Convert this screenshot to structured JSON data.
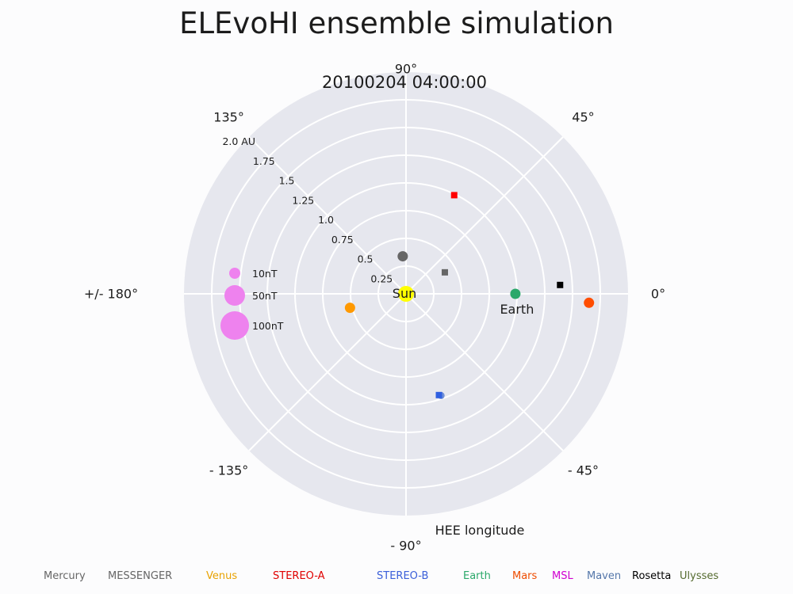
{
  "title": "ELEvoHI ensemble simulation",
  "timestamp": "20100204   04:00:00",
  "chart_data": {
    "type": "scatter",
    "projection": "polar",
    "theta_zero_direction": "right",
    "r_max_au": 2.0,
    "grid": true,
    "background_color": "#e6e7ee",
    "radial_ticks": [
      0.25,
      0.5,
      0.75,
      1.0,
      1.25,
      1.5,
      1.75,
      2.0
    ],
    "radial_tick_labels": [
      "0.25",
      "0.5",
      "0.75",
      "1.0",
      "1.25",
      "1.5",
      "1.75",
      "2.0 AU"
    ],
    "angle_labels": [
      {
        "angle": 0,
        "text": "0°"
      },
      {
        "angle": 45,
        "text": "45°"
      },
      {
        "angle": 90,
        "text": "90°"
      },
      {
        "angle": 135,
        "text": "135°"
      },
      {
        "angle": 180,
        "text": "+/- 180°"
      },
      {
        "angle": -135,
        "text": "- 135°"
      },
      {
        "angle": -90,
        "text": "- 90°"
      },
      {
        "angle": -45,
        "text": "- 45°"
      }
    ],
    "axis_label": "HEE longitude",
    "points": [
      {
        "name": "Sun",
        "r": 0.0,
        "theta": 0,
        "marker": "circle",
        "color": "#ffff00",
        "size": 10,
        "label": "Sun"
      },
      {
        "name": "Mercury",
        "r": 0.34,
        "theta": 95,
        "marker": "circle",
        "color": "#666666",
        "size": 6.5
      },
      {
        "name": "MESSENGER",
        "r": 0.4,
        "theta": 29,
        "marker": "square",
        "color": "#666666",
        "size": 4
      },
      {
        "name": "Venus",
        "r": 0.52,
        "theta": 194,
        "marker": "circle",
        "color": "#ff9900",
        "size": 6.5
      },
      {
        "name": "STEREO-A",
        "r": 0.99,
        "theta": 64,
        "marker": "square",
        "color": "#ff0000",
        "size": 4
      },
      {
        "name": "STEREO-B-small",
        "r": 0.97,
        "theta": -71,
        "marker": "circle",
        "color": "#6f8fd6",
        "size": 4.5
      },
      {
        "name": "STEREO-B",
        "r": 0.96,
        "theta": -72,
        "marker": "square",
        "color": "#2f5fe0",
        "size": 4
      },
      {
        "name": "Earth",
        "r": 0.985,
        "theta": 0,
        "marker": "circle",
        "color": "#2aa86a",
        "size": 6.5,
        "label": "Earth"
      },
      {
        "name": "Mars",
        "r": 1.65,
        "theta": -2.8,
        "marker": "circle",
        "color": "#ff4d00",
        "size": 6.5
      },
      {
        "name": "Rosetta",
        "r": 1.39,
        "theta": 3.3,
        "marker": "square",
        "color": "#000000",
        "size": 4
      }
    ],
    "field_scale": [
      {
        "label": "10nT",
        "color": "#ee82ee",
        "size": 7
      },
      {
        "label": "50nT",
        "color": "#ee82ee",
        "size": 13
      },
      {
        "label": "100nT",
        "color": "#ee82ee",
        "size": 18
      }
    ],
    "legend_placement": "bottom"
  },
  "legend": [
    {
      "name": "Mercury",
      "color": "#666666"
    },
    {
      "name": "MESSENGER",
      "color": "#666666"
    },
    {
      "name": "Venus",
      "color": "#e8a200"
    },
    {
      "name": "STEREO-A",
      "color": "#e00000"
    },
    {
      "name": "STEREO-B",
      "color": "#3b5fd9"
    },
    {
      "name": "Earth",
      "color": "#2aa86a"
    },
    {
      "name": "Mars",
      "color": "#ee4c00"
    },
    {
      "name": "MSL",
      "color": "#d000d0"
    },
    {
      "name": "Maven",
      "color": "#5577aa"
    },
    {
      "name": "Rosetta",
      "color": "#000000"
    },
    {
      "name": "Ulysses",
      "color": "#556b2f"
    }
  ]
}
